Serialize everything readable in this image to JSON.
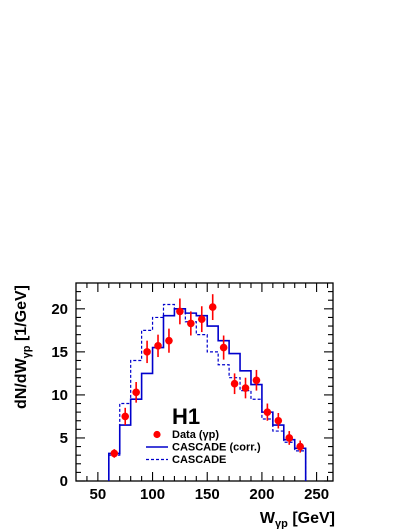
{
  "chart_data": {
    "type": "line",
    "title": "",
    "xlabel": {
      "main": "W",
      "sub": "γp",
      "unit": "[GeV]"
    },
    "ylabel": {
      "main": "dN/dW",
      "sub": "γp",
      "unit": "[1/GeV]"
    },
    "xlim": [
      30,
      265
    ],
    "ylim": [
      0,
      23
    ],
    "x_ticks": [
      50,
      100,
      150,
      200,
      250
    ],
    "y_ticks": [
      0,
      5,
      10,
      15,
      20
    ],
    "grid": false,
    "legend_position": "bottom-center",
    "experiment_label": "H1",
    "bin_edges": [
      60,
      70,
      80,
      90,
      100,
      110,
      120,
      130,
      140,
      150,
      160,
      170,
      180,
      190,
      200,
      210,
      220,
      230,
      240
    ],
    "series": [
      {
        "name": "Data (γp)",
        "kind": "points",
        "color": "#ff0000",
        "x": [
          65,
          75,
          85,
          95,
          105,
          115,
          125,
          135,
          145,
          155,
          165,
          175,
          185,
          195,
          205,
          215,
          225,
          235
        ],
        "values": [
          3.2,
          7.5,
          10.3,
          15.0,
          15.7,
          16.3,
          19.7,
          18.3,
          18.8,
          20.2,
          15.5,
          11.3,
          10.8,
          11.7,
          8.0,
          7.0,
          5.0,
          4.0
        ],
        "errors": [
          0.5,
          1.0,
          1.2,
          1.3,
          1.3,
          1.4,
          1.5,
          1.4,
          1.5,
          1.5,
          1.4,
          1.2,
          1.2,
          1.2,
          1.0,
          0.9,
          0.8,
          0.7
        ]
      },
      {
        "name": "CASCADE (corr.)",
        "kind": "step",
        "color": "#0000cc",
        "style": "solid",
        "values": [
          3.2,
          6.5,
          9.5,
          12.5,
          15.5,
          19.2,
          20.0,
          19.5,
          19.2,
          18.0,
          16.3,
          14.8,
          12.8,
          11.2,
          8.0,
          6.5,
          4.8,
          3.8
        ]
      },
      {
        "name": "CASCADE",
        "kind": "step",
        "color": "#0000cc",
        "style": "dashed",
        "values": [
          3.0,
          9.0,
          14.0,
          17.5,
          19.0,
          20.5,
          20.0,
          18.5,
          17.0,
          15.0,
          13.5,
          12.0,
          10.5,
          9.5,
          7.2,
          5.8,
          4.5,
          3.5
        ]
      }
    ]
  }
}
